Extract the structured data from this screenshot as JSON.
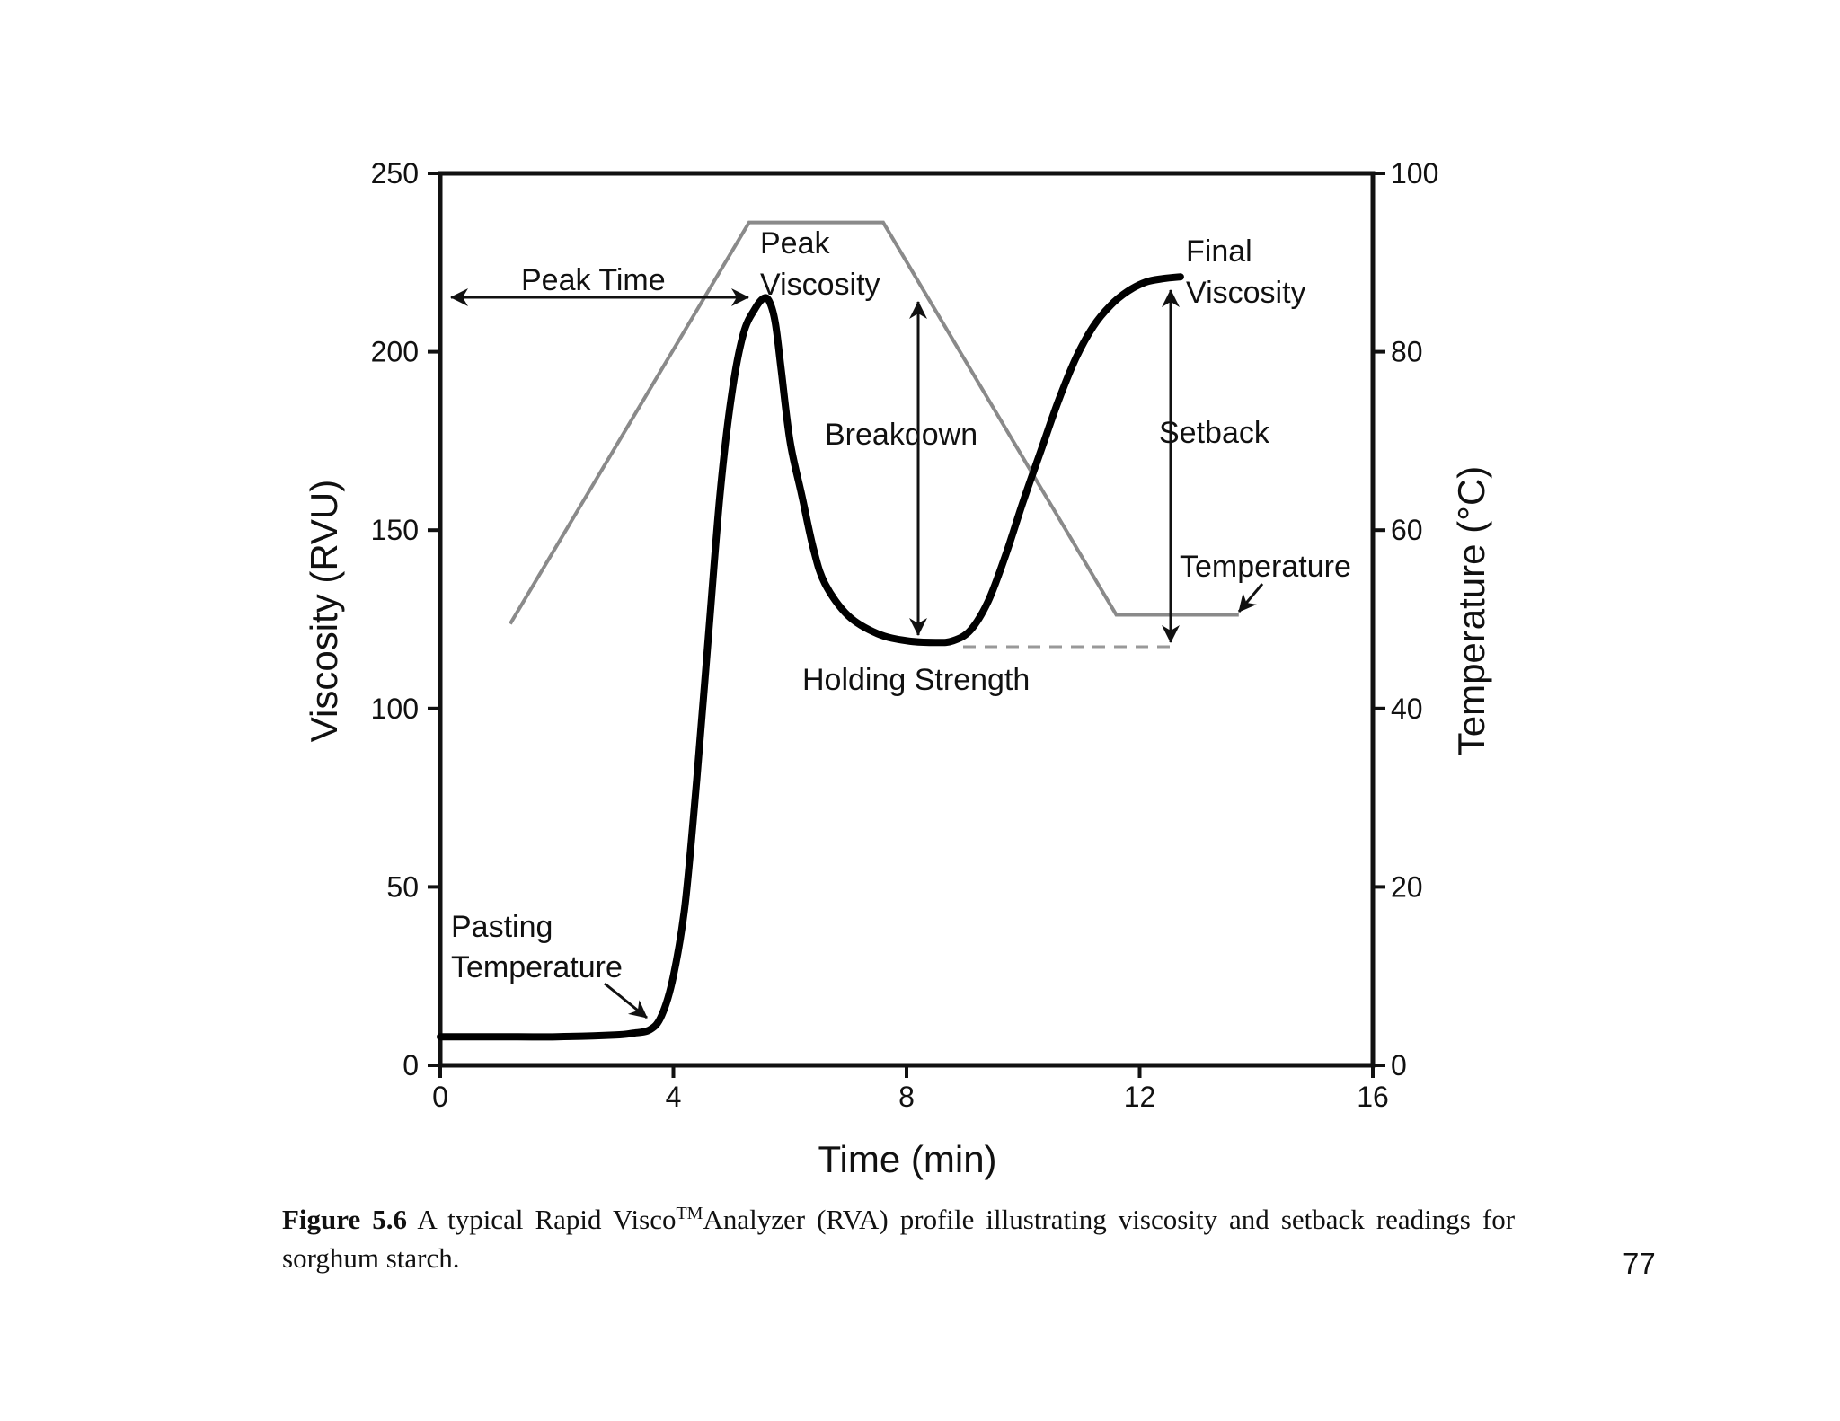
{
  "chart_data": {
    "type": "line",
    "title": "",
    "xlabel": "Time (min)",
    "ylabel": "Viscosity (RVU)",
    "y2label": "Temperature (°C)",
    "xlim": [
      0,
      16
    ],
    "ylim": [
      0,
      250
    ],
    "y2lim": [
      0,
      100
    ],
    "xticks": [
      0,
      4,
      8,
      12,
      16
    ],
    "yticks": [
      0,
      50,
      100,
      150,
      200,
      250
    ],
    "y2ticks": [
      0,
      20,
      40,
      60,
      80,
      100
    ],
    "grid": false,
    "series": [
      {
        "name": "Viscosity",
        "axis": "left",
        "color": "#000000",
        "x": [
          0,
          1,
          2,
          3,
          3.3,
          3.6,
          3.8,
          4.0,
          4.2,
          4.4,
          4.6,
          4.8,
          5.0,
          5.2,
          5.4,
          5.55,
          5.65,
          5.75,
          5.85,
          6.0,
          6.2,
          6.4,
          6.6,
          7.0,
          7.5,
          8.0,
          8.5,
          8.8,
          9.1,
          9.4,
          9.7,
          10.0,
          10.3,
          10.6,
          10.9,
          11.2,
          11.5,
          11.8,
          12.1,
          12.4,
          12.7
        ],
        "values": [
          8,
          8,
          8,
          8.5,
          9,
          10,
          14,
          25,
          45,
          80,
          120,
          160,
          188,
          205,
          212,
          215,
          214,
          208,
          195,
          175,
          160,
          145,
          135,
          126,
          121,
          119,
          118.5,
          119,
          122,
          130,
          143,
          158,
          172,
          186,
          198,
          207,
          213,
          217,
          219.5,
          220.5,
          221
        ]
      },
      {
        "name": "Temperature",
        "axis": "right",
        "color": "#8a8a8a",
        "x": [
          1.2,
          5.3,
          7.6,
          11.6,
          13.7
        ],
        "values": [
          49.5,
          94.5,
          94.5,
          50.5,
          50.5
        ]
      }
    ],
    "annotations": {
      "peak_viscosity": "Peak\nViscosity",
      "peak_time": "Peak Time",
      "breakdown": "Breakdown",
      "final_viscosity": "Final\nViscosity",
      "setback": "Setback",
      "holding_strength": "Holding Strength",
      "pasting_temperature": "Pasting\nTemperature",
      "temperature": "Temperature"
    }
  },
  "caption": {
    "label": "Figure 5.6",
    "text_before_tm": "A typical Rapid Visco",
    "tm": "TM",
    "text_after_tm": "Analyzer (RVA) profile illustrating viscosity and setback readings for sorghum starch."
  },
  "page_number": "77"
}
